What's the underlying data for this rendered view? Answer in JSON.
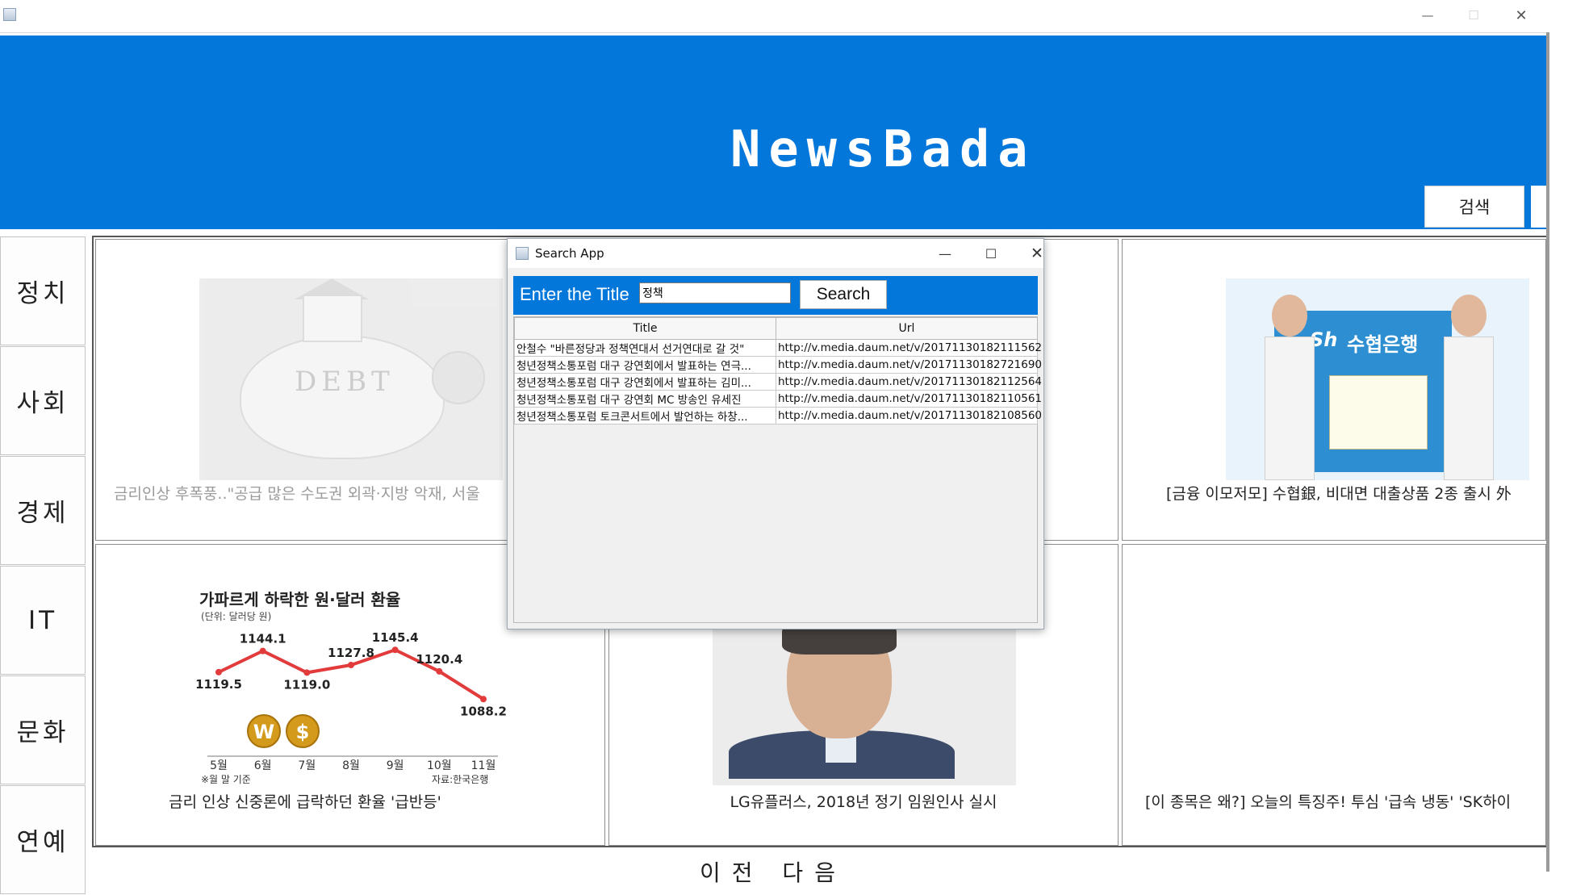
{
  "window": {
    "minimize_glyph": "—",
    "maximize_glyph": "☐",
    "close_glyph": "✕"
  },
  "header": {
    "brand": "NewsBada",
    "search_button": "검색",
    "background": "#0377da"
  },
  "sidebar": {
    "items": [
      {
        "label": "정치"
      },
      {
        "label": "사회"
      },
      {
        "label": "경제"
      },
      {
        "label": "IT"
      },
      {
        "label": "문화"
      },
      {
        "label": "연예"
      }
    ]
  },
  "grid": {
    "cells": [
      {
        "caption": "금리인상 후폭풍..\"공급 많은 수도권 외곽·지방 악재, 서울"
      },
      {
        "caption": ""
      },
      {
        "caption": "[금융 이모저모] 수협銀, 비대면 대출상품 2종 출시 外"
      },
      {
        "caption": "금리 인상 신중론에 급락하던 환율 '급반등'"
      },
      {
        "caption": "LG유플러스, 2018년 정기 임원인사 실시"
      },
      {
        "caption": "[이 종목은 왜?] 오늘의 특징주! 투심 '급속 냉동' 'SK하이"
      }
    ],
    "debt_image_text": "DEBT",
    "promo_image": {
      "bank": "수협은행",
      "logo": "Sh"
    }
  },
  "exchange_chart": {
    "title": "가파르게 하락한 원·달러 환율",
    "unit": "(단위: 달러당 원)",
    "footnote": "※월 말 기준",
    "source": "자료:한국은행",
    "coin_labels": [
      "W",
      "$"
    ]
  },
  "chart_data": {
    "type": "line",
    "title": "가파르게 하락한 원·달러 환율",
    "ylabel": "달러당 원",
    "categories": [
      "5월",
      "6월",
      "7월",
      "8월",
      "9월",
      "10월",
      "11월"
    ],
    "values": [
      1119.5,
      1144.1,
      1119.0,
      1127.8,
      1145.4,
      1120.4,
      1088.2
    ],
    "value_labels": [
      "1119.5",
      "1144.1",
      "1119.0",
      "1127.8",
      "1145.4",
      "1120.4",
      "1088.2"
    ],
    "ylim": [
      1080,
      1155
    ],
    "color": "#e23b3b"
  },
  "pager": {
    "text": "이전 다음"
  },
  "search_dialog": {
    "title": "Search App",
    "enter_label": "Enter the Title",
    "query": "정책",
    "search_button": "Search",
    "columns": [
      "Title",
      "Url"
    ],
    "rows": [
      {
        "title": "안철수 \"바른정당과 정책연대서 선거연대로 갈 것\"",
        "url": "http://v.media.daum.net/v/20171130182111562"
      },
      {
        "title": "청년정책소통포럼 대구 강연회에서 발표하는 연극...",
        "url": "http://v.media.daum.net/v/20171130182721690"
      },
      {
        "title": "청년정책소통포럼 대구 강연회에서 발표하는 김미...",
        "url": "http://v.media.daum.net/v/20171130182112564"
      },
      {
        "title": "청년정책소통포럼 대구 강연회 MC 방송인 유세진",
        "url": "http://v.media.daum.net/v/20171130182110561"
      },
      {
        "title": "청년정책소통포럼 토크콘서트에서 발언하는 하창...",
        "url": "http://v.media.daum.net/v/20171130182108560"
      }
    ]
  }
}
